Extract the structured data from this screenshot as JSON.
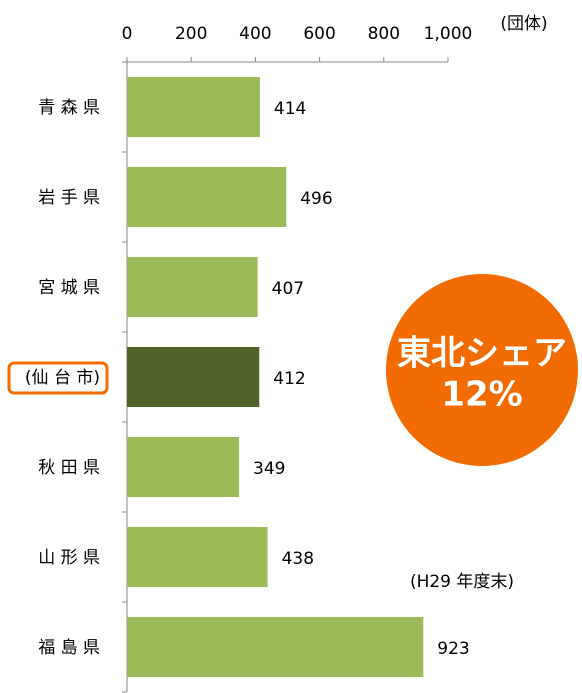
{
  "chart_data": {
    "type": "bar",
    "orientation": "horizontal",
    "unit_label": "(団体)",
    "note": "(H29 年度末)",
    "annotation": [
      "東北シェア",
      "12%"
    ],
    "annotation_color": "#f26b00",
    "categories": [
      "青 森 県",
      "岩 手 県",
      "宮 城 県",
      "(仙 台 市)",
      "秋 田 県",
      "山 形 県",
      "福 島 県"
    ],
    "values": [
      414,
      496,
      407,
      412,
      349,
      438,
      923
    ],
    "colors": [
      "#9bbb59",
      "#9bbb59",
      "#9bbb59",
      "#4f6228",
      "#9bbb59",
      "#9bbb59",
      "#9bbb59"
    ],
    "highlight_index": 3,
    "highlight_color": "#f26b00",
    "xlim": [
      0,
      1000
    ],
    "xticks": [
      0,
      200,
      400,
      600,
      800,
      {
        "value": 1000,
        "label": "1,000"
      }
    ],
    "grid": false
  }
}
